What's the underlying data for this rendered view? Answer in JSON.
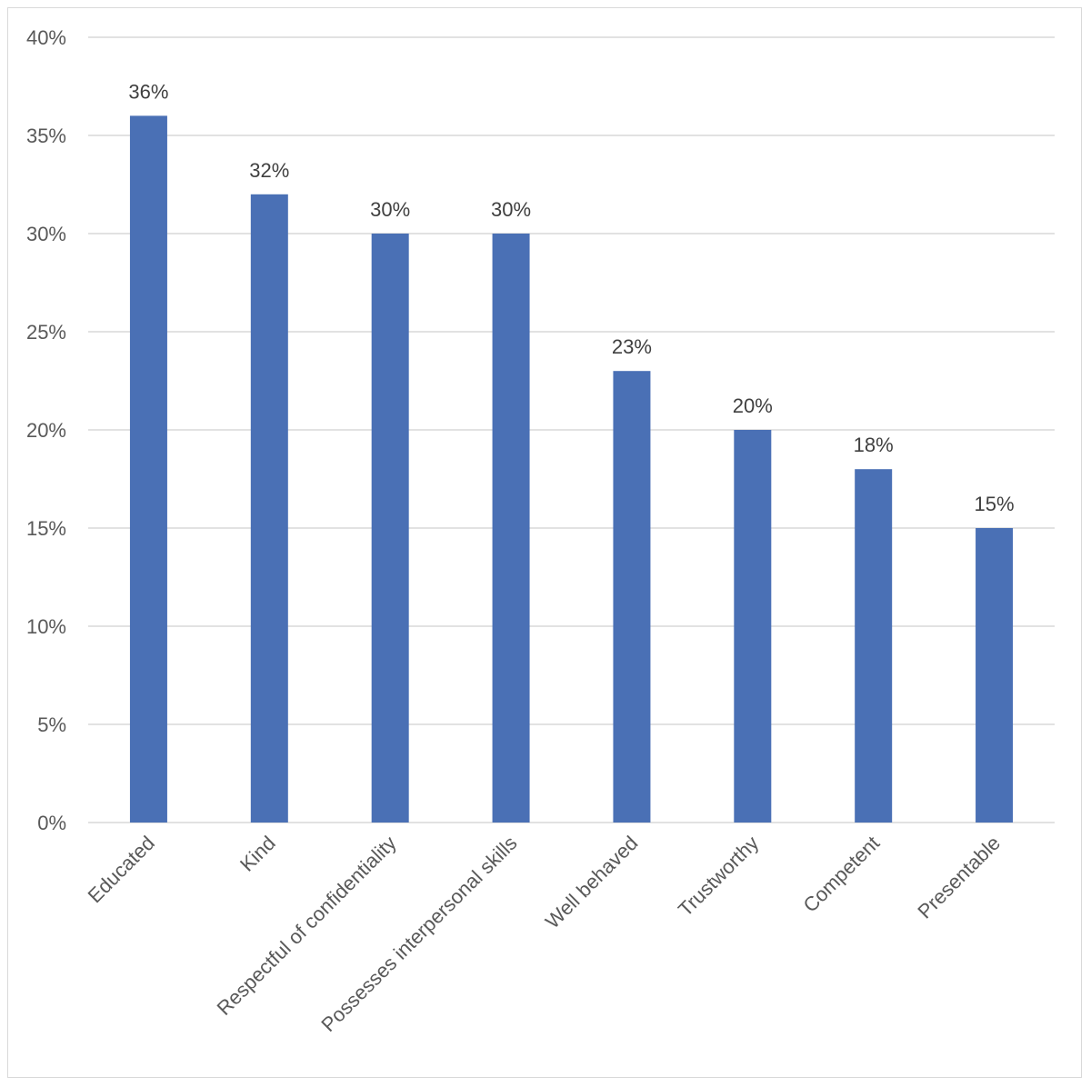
{
  "chart_data": {
    "type": "bar",
    "categories": [
      "Educated",
      "Kind",
      "Respectful of confidentiality",
      "Possesses interpersonal skills",
      "Well behaved",
      "Trustworthy",
      "Competent",
      "Presentable"
    ],
    "values": [
      36,
      32,
      30,
      30,
      23,
      20,
      18,
      15
    ],
    "data_labels": [
      "36%",
      "32%",
      "30%",
      "30%",
      "23%",
      "20%",
      "18%",
      "15%"
    ],
    "y_ticks": [
      0,
      5,
      10,
      15,
      20,
      25,
      30,
      35,
      40
    ],
    "y_tick_labels": [
      "0%",
      "5%",
      "10%",
      "15%",
      "20%",
      "25%",
      "30%",
      "35%",
      "40%"
    ],
    "ylim": [
      0,
      40
    ],
    "grid": true,
    "legend": "none",
    "bar_color": "#4a70b5",
    "grid_color": "#d9d9d9"
  }
}
